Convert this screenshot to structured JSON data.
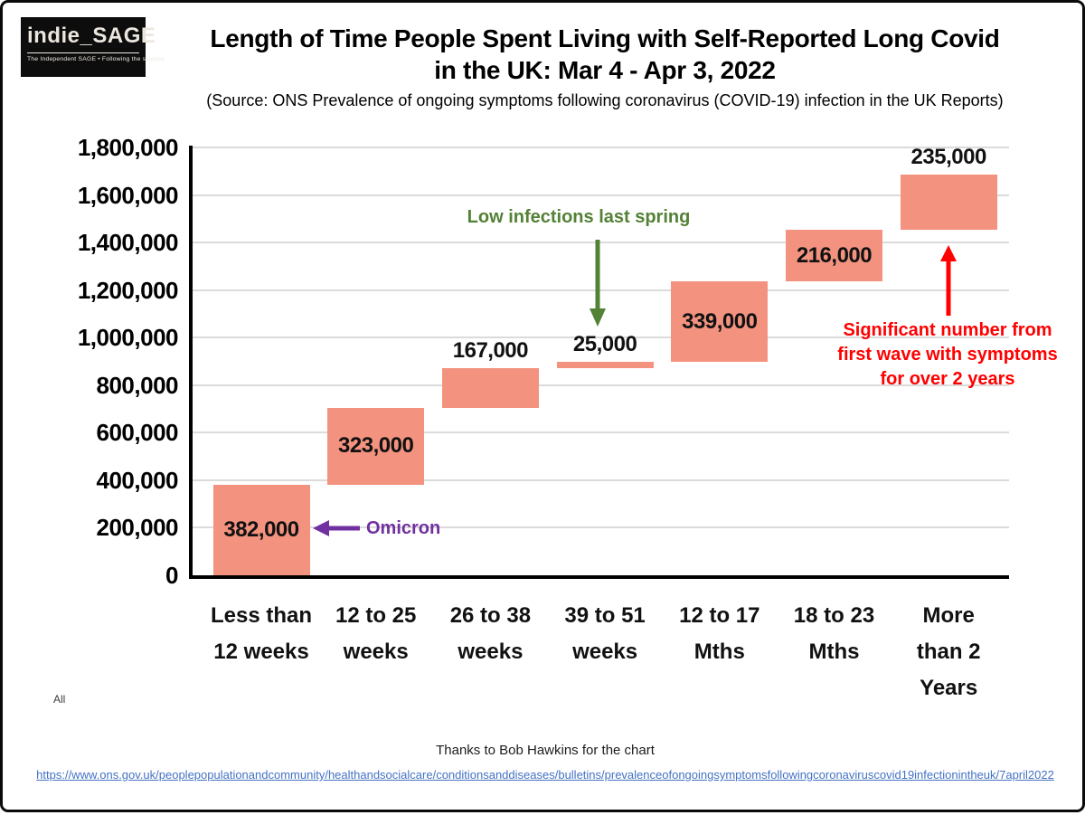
{
  "logo": {
    "brand": "indie_SAGE",
    "tagline": "The Independent SAGE • Following the science"
  },
  "header": {
    "title_line1": "Length of Time People Spent Living with Self-Reported Long Covid",
    "title_line2": "in the UK: Mar 4 - Apr 3, 2022",
    "source": "(Source: ONS Prevalence of ongoing symptoms following coronavirus (COVID-19) infection in the UK Reports)"
  },
  "chart_data": {
    "type": "bar",
    "subtype": "waterfall",
    "title": "Length of Time People Spent Living with Self-Reported Long Covid in the UK: Mar 4 - Apr 3, 2022",
    "categories": [
      "Less than 12 weeks",
      "12 to 25 weeks",
      "26 to 38 weeks",
      "39 to 51 weeks",
      "12 to 17 Mths",
      "18 to 23 Mths",
      "More than 2 Years"
    ],
    "tick_lines": [
      "Less than\n12 weeks",
      "12 to 25\nweeks",
      "26 to 38\nweeks",
      "39 to 51\nweeks",
      "12 to 17\nMths",
      "18 to 23\nMths",
      "More\nthan 2\nYears"
    ],
    "values": [
      382000,
      323000,
      167000,
      25000,
      339000,
      216000,
      235000
    ],
    "cumulative_start": [
      0,
      382000,
      705000,
      872000,
      897000,
      1236000,
      1452000
    ],
    "value_labels": [
      "382,000",
      "323,000",
      "167,000",
      "25,000",
      "339,000",
      "216,000",
      "235,000"
    ],
    "label_placement": [
      "inside",
      "inside",
      "above",
      "above",
      "inside",
      "inside",
      "above"
    ],
    "y_ticks": [
      "1,800,000",
      "1,600,000",
      "1,400,000",
      "1,200,000",
      "1,000,000",
      "800,000",
      "600,000",
      "400,000",
      "200,000",
      "0"
    ],
    "y_tick_values": [
      1800000,
      1600000,
      1400000,
      1200000,
      1000000,
      800000,
      600000,
      400000,
      200000,
      0
    ],
    "ylim": [
      0,
      1800000
    ],
    "xlabel": "",
    "ylabel": "",
    "grid": true,
    "legend": "none",
    "bar_color": "#F3937F",
    "series_label": "All"
  },
  "annotations": {
    "low_infections": {
      "text": "Low infections last spring",
      "color": "#538135"
    },
    "omicron": {
      "text": "Omicron",
      "color": "#7030A0"
    },
    "first_wave": {
      "text": "Significant number from\nfirst wave with symptoms\nfor over 2 years",
      "color": "#FF0000"
    }
  },
  "footer": {
    "series_label": "All",
    "credit": "Thanks to Bob Hawkins for the chart",
    "link": "https://www.ons.gov.uk/peoplepopulationandcommunity/healthandsocialcare/conditionsanddiseases/bulletins/prevalenceofongoingsymptomsfollowingcoronaviruscovid19infectionintheuk/7april2022",
    "link_color": "#4472C4"
  }
}
